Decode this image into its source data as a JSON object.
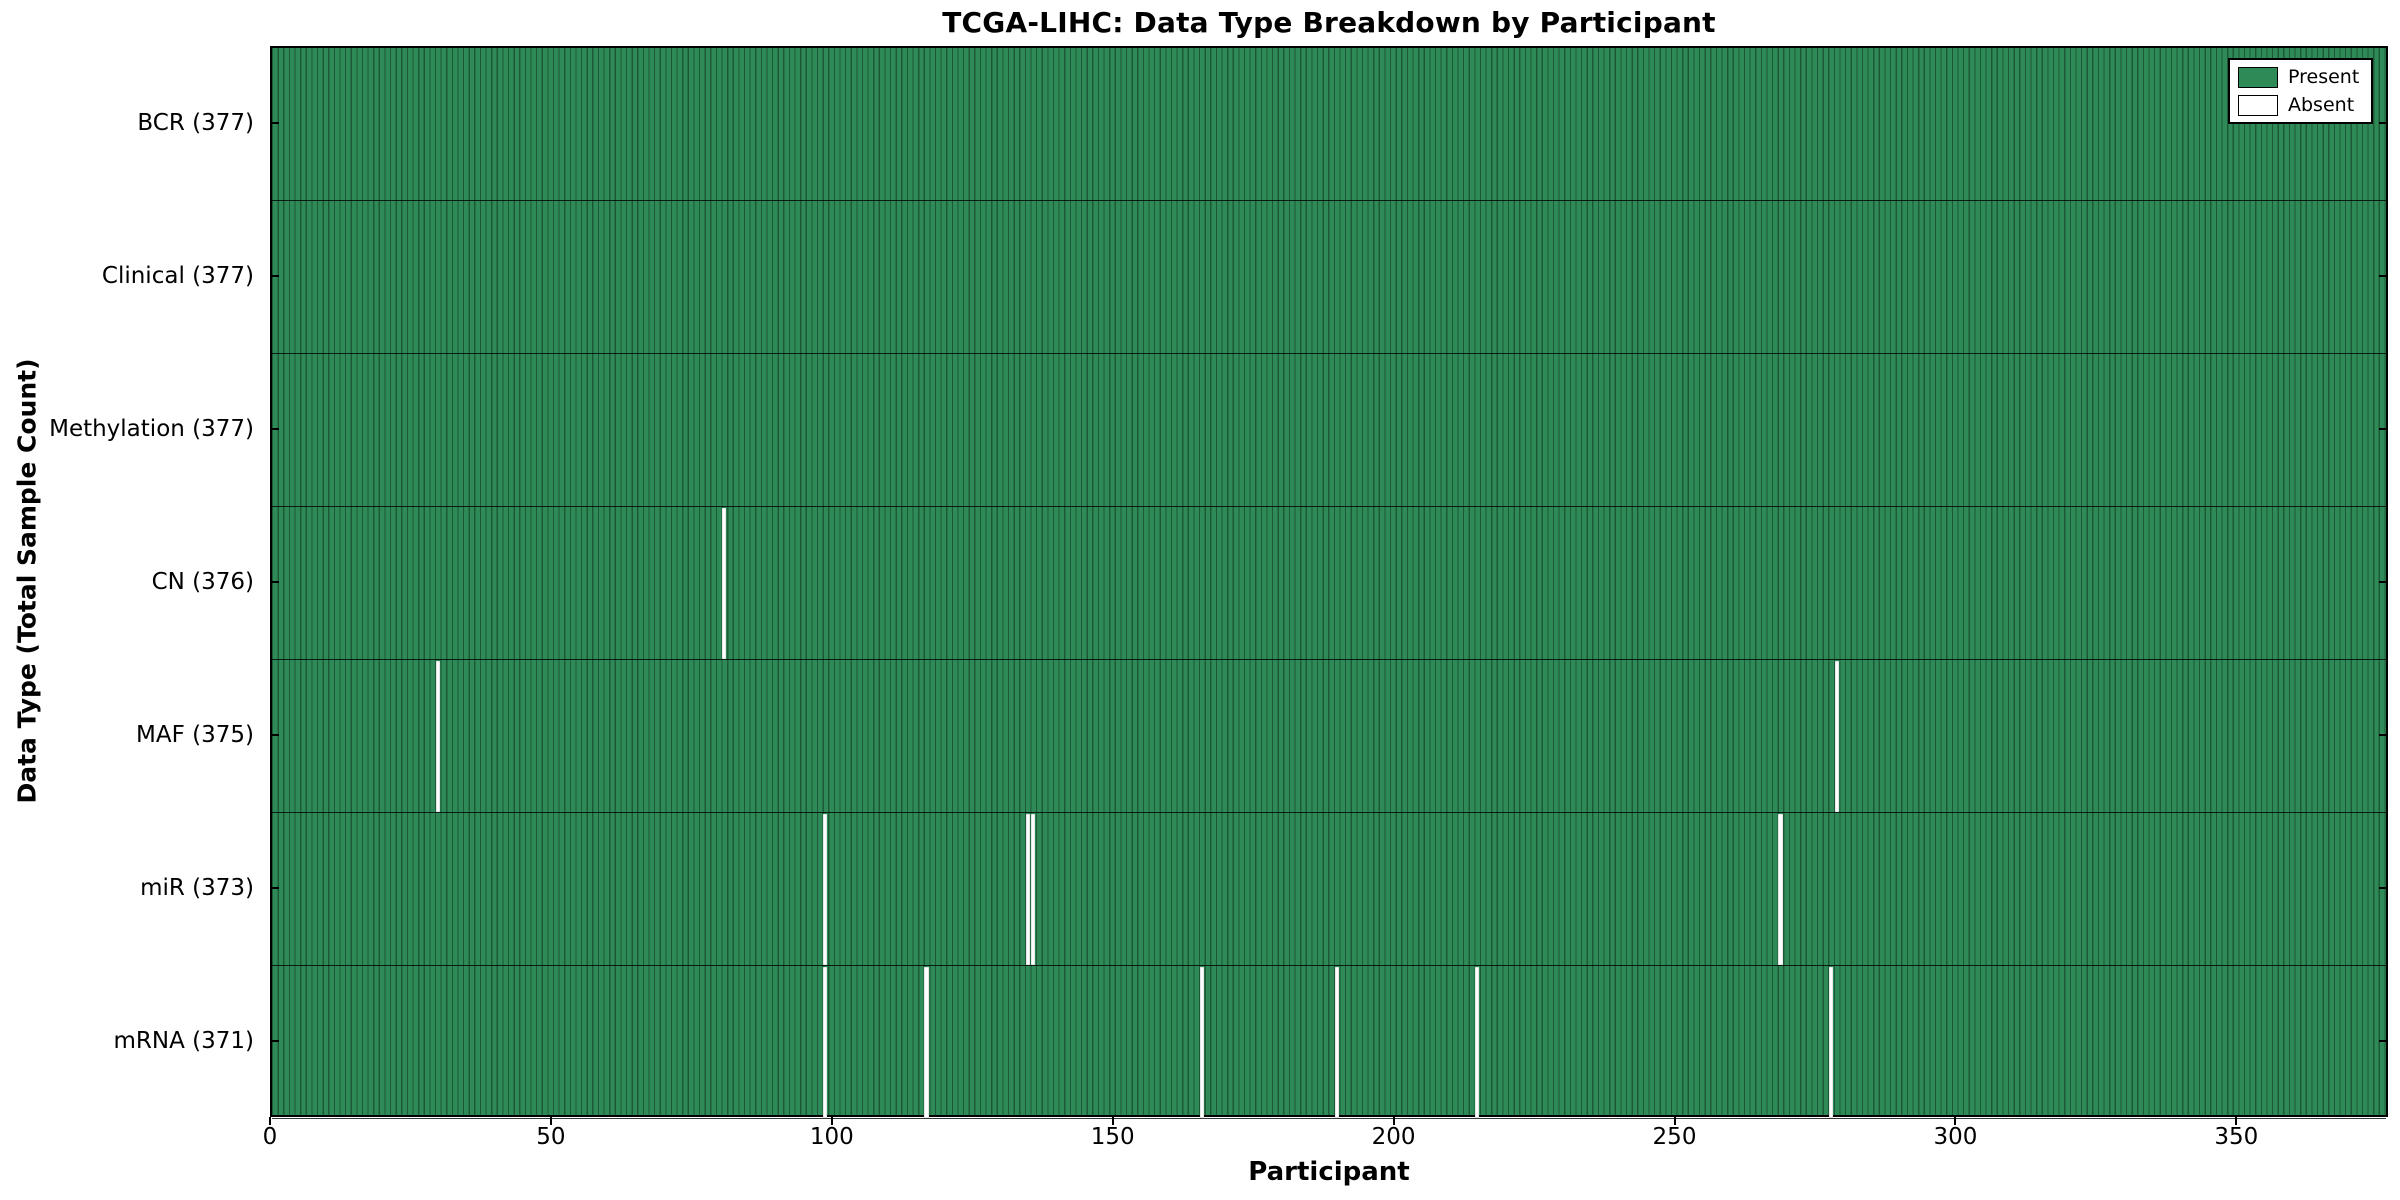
{
  "figure": {
    "title": "TCGA-LIHC: Data Type Breakdown by Participant",
    "xlabel": "Participant",
    "ylabel": "Data Type (Total Sample Count)"
  },
  "colors": {
    "present": "#2e8b57",
    "present_edge": "#1e5937",
    "absent": "#ffffff",
    "axis": "#000000",
    "background": "#ffffff"
  },
  "chart_data": {
    "type": "heatmap",
    "title": "TCGA-LIHC: Data Type Breakdown by Participant",
    "xlabel": "Participant",
    "ylabel": "Data Type (Total Sample Count)",
    "x_range": [
      0,
      377
    ],
    "x_ticks": [
      0,
      50,
      100,
      150,
      200,
      250,
      300,
      350
    ],
    "total_participants": 377,
    "grid": false,
    "legend_position": "upper right",
    "legend": [
      {
        "label": "Present",
        "color": "#2e8b57"
      },
      {
        "label": "Absent",
        "color": "#ffffff"
      }
    ],
    "rows": [
      {
        "name": "BCR",
        "label": "BCR (377)",
        "present_count": 377,
        "absent_participants": []
      },
      {
        "name": "Clinical",
        "label": "Clinical (377)",
        "present_count": 377,
        "absent_participants": []
      },
      {
        "name": "Methylation",
        "label": "Methylation (377)",
        "present_count": 377,
        "absent_participants": []
      },
      {
        "name": "CN",
        "label": "CN (376)",
        "present_count": 376,
        "absent_participants": [
          80
        ]
      },
      {
        "name": "MAF",
        "label": "MAF (375)",
        "present_count": 375,
        "absent_participants": [
          29,
          278
        ]
      },
      {
        "name": "miR",
        "label": "miR (373)",
        "present_count": 373,
        "absent_participants": [
          98,
          134,
          135,
          268
        ]
      },
      {
        "name": "mRNA",
        "label": "mRNA (371)",
        "present_count": 371,
        "absent_participants": [
          98,
          116,
          165,
          189,
          214,
          277
        ]
      }
    ]
  }
}
